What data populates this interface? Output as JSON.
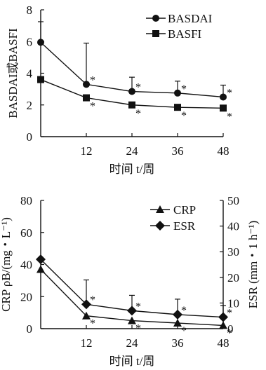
{
  "chart_data": [
    {
      "type": "line",
      "x": [
        0,
        12,
        24,
        36,
        48
      ],
      "xticks": [
        "12",
        "24",
        "36",
        "48"
      ],
      "xtick_values": [
        12,
        24,
        36,
        48
      ],
      "xlabel": "时间 t/周",
      "ylabel": "BASDAI或BASFI",
      "ylim": [
        0,
        8
      ],
      "yticks": [
        0,
        2,
        4,
        6,
        8
      ],
      "legend": "top-right",
      "series": [
        {
          "name": "BASDAI",
          "marker": "circle",
          "values": [
            5.95,
            3.3,
            2.85,
            2.75,
            2.5
          ],
          "err": [
            1.3,
            2.6,
            0.9,
            0.75,
            0.75
          ],
          "significant": [
            false,
            true,
            true,
            true,
            true
          ]
        },
        {
          "name": "BASFI",
          "marker": "square",
          "values": [
            3.6,
            2.45,
            2.0,
            1.85,
            1.8
          ],
          "err": [
            0,
            0,
            0,
            0,
            0
          ],
          "significant": [
            false,
            true,
            true,
            true,
            true
          ]
        }
      ],
      "annotation_mark": "*"
    },
    {
      "type": "line",
      "x": [
        0,
        12,
        24,
        36,
        48
      ],
      "xticks": [
        "12",
        "24",
        "36",
        "48"
      ],
      "xtick_values": [
        12,
        24,
        36,
        48
      ],
      "xlabel": "时间 t/周",
      "ylabel_left": "CRP ρB/(mg・L⁻¹)",
      "ylabel_right": "ESR (mm・1 h⁻¹)",
      "ylim_left": [
        0,
        80
      ],
      "yticks_left": [
        0,
        20,
        40,
        60,
        80
      ],
      "ylim_right": [
        0,
        50
      ],
      "yticks_right": [
        0,
        10,
        20,
        30,
        40,
        50
      ],
      "legend": "top-right",
      "series": [
        {
          "name": "CRP",
          "marker": "triangle",
          "axis": "left",
          "values": [
            37,
            8,
            5,
            3.5,
            2
          ],
          "err": [
            0,
            0,
            0,
            0,
            0
          ],
          "significant": [
            false,
            true,
            true,
            true,
            true
          ]
        },
        {
          "name": "ESR",
          "marker": "diamond",
          "axis": "right",
          "values": [
            27,
            9.5,
            7,
            5.5,
            4.5
          ],
          "err": [
            0,
            9.5,
            6,
            6,
            4.5
          ],
          "significant": [
            false,
            true,
            true,
            true,
            true
          ]
        }
      ],
      "annotation_mark": "*"
    }
  ]
}
